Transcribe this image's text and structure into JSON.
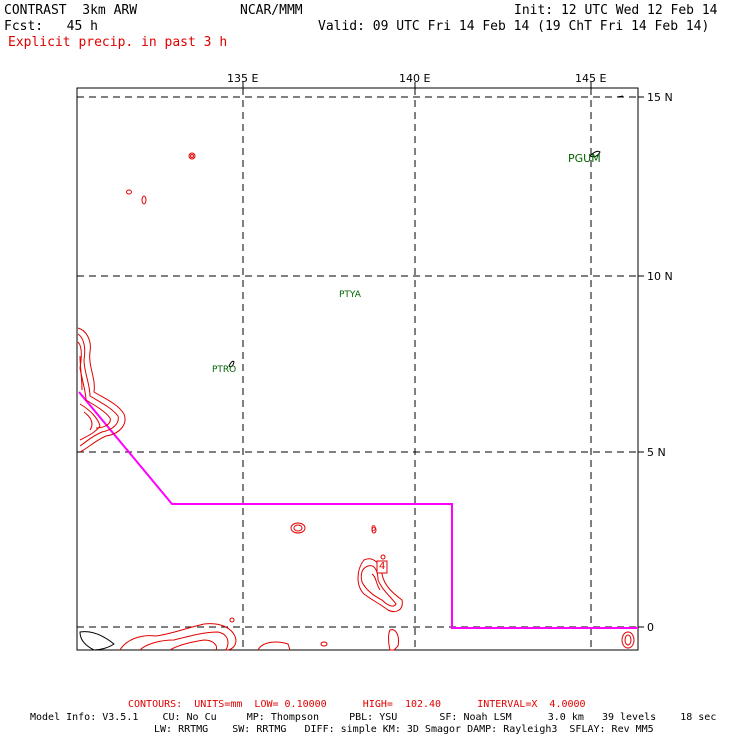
{
  "header": {
    "model": "CONTRAST  3km ARW",
    "center": "NCAR/MMM",
    "init": "Init: 12 UTC Wed 12 Feb 14",
    "fcst": "Fcst:   45 h",
    "valid": "Valid: 09 UTC Fri 14 Feb 14 (19 ChT Fri 14 Feb 14)",
    "field": "Explicit precip. in past 3 h"
  },
  "map": {
    "lon_labels": [
      "135 E",
      "140 E",
      "145 E"
    ],
    "lat_labels": [
      "15 N",
      "10 N",
      "5 N",
      "0"
    ],
    "stations": [
      {
        "id": "PGUM"
      },
      {
        "id": "PTYA"
      },
      {
        "id": "PTRO"
      }
    ],
    "contour_labels": [
      "4",
      "0"
    ],
    "colors": {
      "contour": "#e00000",
      "boundary": "#ff00ff",
      "station": "#006400",
      "grid": "#000000"
    }
  },
  "footer": {
    "contours": "CONTOURS:  UNITS=mm  LOW= 0.10000      HIGH=  102.40      INTERVAL=X  4.0000",
    "model_info": "Model Info: V3.5.1    CU: No Cu     MP: Thompson     PBL: YSU       SF: Noah LSM      3.0 km   39 levels    18 sec",
    "model_info2": "LW: RRTMG    SW: RRTMG   DIFF: simple KM: 3D Smagor DAMP: Rayleigh3  SFLAY: Rev MM5"
  }
}
